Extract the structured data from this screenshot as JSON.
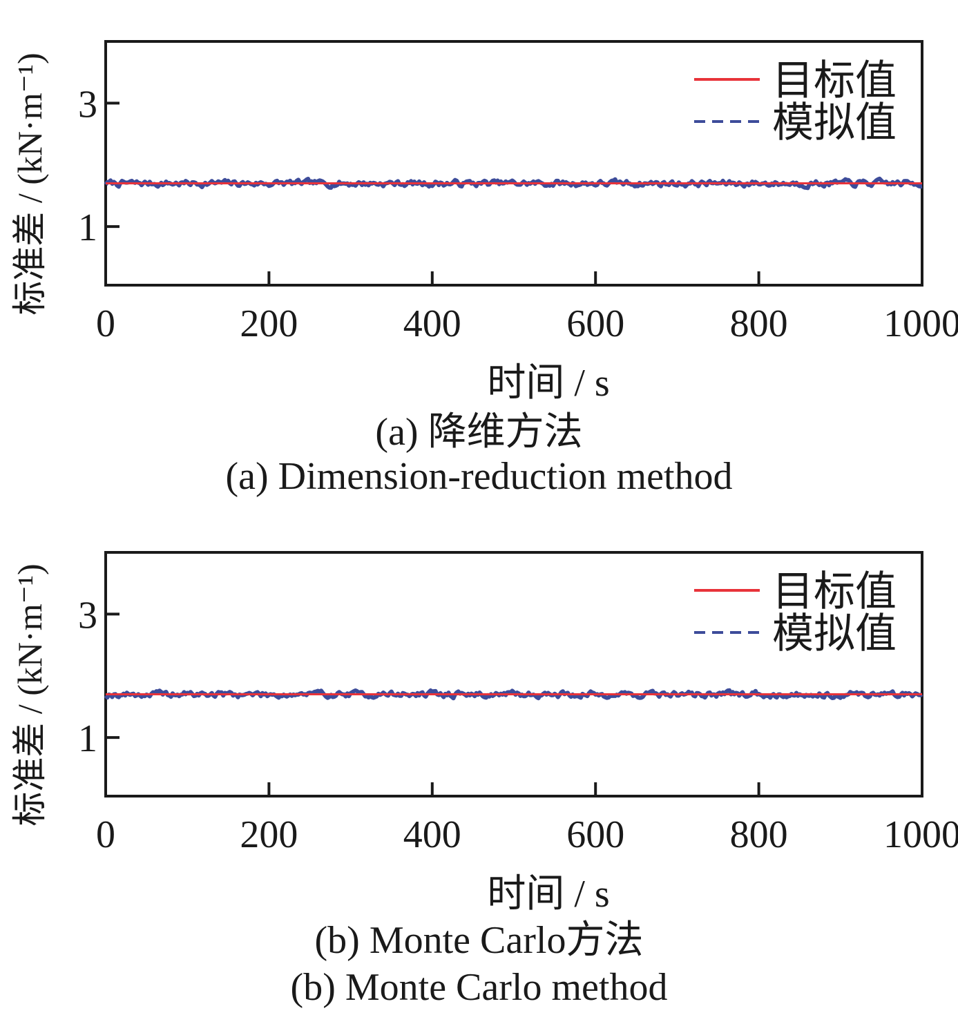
{
  "chart_data": [
    {
      "type": "line",
      "caption_cn": "(a) 降维方法",
      "caption_en": "(a) Dimension-reduction method",
      "xlabel": "时间 / s",
      "ylabel": "标准差 / (kN·m⁻¹)",
      "xlim": [
        0,
        1000
      ],
      "ylim": [
        0.05,
        4.0
      ],
      "xticks": [
        0,
        200,
        400,
        600,
        800,
        1000
      ],
      "yticks": [
        1,
        3
      ],
      "legend": {
        "placement": "top-right"
      },
      "series": [
        {
          "name": "目标值",
          "style": "solid",
          "color": "#e8333a",
          "constant": 1.7
        },
        {
          "name": "模拟值",
          "style": "dashed",
          "color": "#3d4c9a",
          "mean": 1.7,
          "noise": 0.04,
          "seed": 7
        }
      ]
    },
    {
      "type": "line",
      "caption_cn": "(b) Monte Carlo方法",
      "caption_en": "(b) Monte Carlo method",
      "xlabel": "时间 / s",
      "ylabel": "标准差 / (kN·m⁻¹)",
      "xlim": [
        0,
        1000
      ],
      "ylim": [
        0.05,
        4.0
      ],
      "xticks": [
        0,
        200,
        400,
        600,
        800,
        1000
      ],
      "yticks": [
        1,
        3
      ],
      "legend": {
        "placement": "top-right"
      },
      "series": [
        {
          "name": "目标值",
          "style": "solid",
          "color": "#e8333a",
          "constant": 1.7
        },
        {
          "name": "模拟值",
          "style": "dashed",
          "color": "#3d4c9a",
          "mean": 1.7,
          "noise": 0.04,
          "seed": 19
        }
      ]
    }
  ]
}
